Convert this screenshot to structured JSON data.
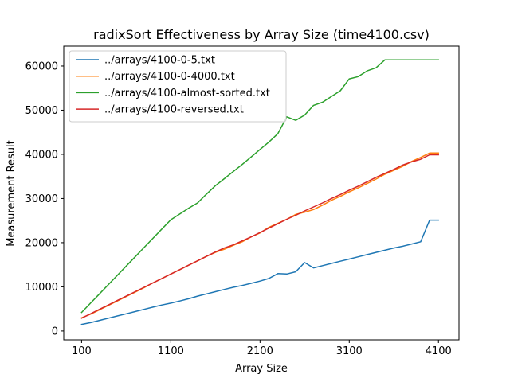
{
  "chart_data": {
    "type": "line",
    "title": "radixSort Effectiveness by Array Size (time4100.csv)",
    "xlabel": "Array Size",
    "ylabel": "Measurement Result",
    "xlim": [
      -100,
      4330
    ],
    "ylim": [
      -2000,
      64500
    ],
    "xticks": [
      100,
      1100,
      2100,
      3100,
      4100
    ],
    "yticks": [
      0,
      10000,
      20000,
      30000,
      40000,
      50000,
      60000
    ],
    "legend_position": "upper left",
    "series": [
      {
        "name": "../arrays/4100-0-5.txt",
        "color": "#1f77b4",
        "x": [
          100,
          200,
          300,
          400,
          500,
          600,
          700,
          800,
          900,
          1000,
          1100,
          1200,
          1300,
          1400,
          1500,
          1600,
          1700,
          1800,
          1900,
          2000,
          2100,
          2200,
          2300,
          2400,
          2500,
          2600,
          2700,
          2800,
          2900,
          3000,
          3100,
          3200,
          3300,
          3400,
          3500,
          3600,
          3700,
          3800,
          3900,
          4000,
          4100
        ],
        "y": [
          1500,
          1900,
          2400,
          2900,
          3400,
          3900,
          4400,
          4900,
          5400,
          5900,
          6300,
          6800,
          7300,
          7900,
          8400,
          8900,
          9400,
          9900,
          10300,
          10800,
          11300,
          11900,
          13000,
          12900,
          13400,
          15500,
          14300,
          14800,
          15300,
          15800,
          16300,
          16800,
          17300,
          17800,
          18300,
          18800,
          19200,
          19700,
          20200,
          25100,
          25100
        ]
      },
      {
        "name": "../arrays/4100-0-4000.txt",
        "color": "#ff7f0e",
        "x": [
          100,
          200,
          300,
          400,
          500,
          600,
          700,
          800,
          900,
          1000,
          1100,
          1200,
          1300,
          1400,
          1500,
          1600,
          1700,
          1800,
          1900,
          2000,
          2100,
          2200,
          2300,
          2400,
          2500,
          2600,
          2700,
          2800,
          2900,
          3000,
          3100,
          3200,
          3300,
          3400,
          3500,
          3600,
          3700,
          3800,
          3900,
          4000,
          4100
        ],
        "y": [
          3000,
          3800,
          4800,
          5800,
          6800,
          7800,
          8800,
          9800,
          10900,
          11900,
          12900,
          13900,
          14900,
          15900,
          16900,
          17800,
          18500,
          19400,
          20200,
          21300,
          22200,
          23500,
          24400,
          25300,
          26400,
          26900,
          27500,
          28500,
          29600,
          30500,
          31500,
          32400,
          33400,
          34400,
          35500,
          36400,
          37300,
          38400,
          39300,
          40300,
          40300
        ]
      },
      {
        "name": "../arrays/4100-almost-sorted.txt",
        "color": "#2ca02c",
        "x": [
          100,
          200,
          300,
          400,
          500,
          600,
          700,
          800,
          900,
          1000,
          1100,
          1200,
          1300,
          1400,
          1500,
          1600,
          1700,
          1800,
          1900,
          2000,
          2100,
          2200,
          2300,
          2400,
          2500,
          2600,
          2700,
          2800,
          2900,
          3000,
          3100,
          3200,
          3300,
          3400,
          3500,
          3600,
          3700,
          3800,
          3900,
          4000,
          4100
        ],
        "y": [
          4200,
          6300,
          8400,
          10500,
          12600,
          14700,
          16800,
          18900,
          21000,
          23100,
          25200,
          26500,
          27800,
          29000,
          31000,
          32900,
          34500,
          36100,
          37700,
          39400,
          41100,
          42800,
          44700,
          48500,
          47700,
          48900,
          51100,
          51800,
          53100,
          54400,
          57100,
          57600,
          58900,
          59600,
          61400,
          61400,
          61400,
          61400,
          61400,
          61400,
          61400
        ]
      },
      {
        "name": "../arrays/4100-reversed.txt",
        "color": "#d62728",
        "x": [
          100,
          200,
          300,
          400,
          500,
          600,
          700,
          800,
          900,
          1000,
          1100,
          1200,
          1300,
          1400,
          1500,
          1600,
          1700,
          1800,
          1900,
          2000,
          2100,
          2200,
          2300,
          2400,
          2500,
          2600,
          2700,
          2800,
          2900,
          3000,
          3100,
          3200,
          3300,
          3400,
          3500,
          3600,
          3700,
          3800,
          3900,
          4000,
          4100
        ],
        "y": [
          2900,
          3900,
          4900,
          5900,
          6900,
          7900,
          8900,
          9900,
          10900,
          11900,
          12900,
          13900,
          14900,
          15900,
          16900,
          17900,
          18800,
          19500,
          20400,
          21300,
          22300,
          23300,
          24300,
          25300,
          26200,
          27200,
          28100,
          29000,
          30000,
          30900,
          31900,
          32800,
          33800,
          34800,
          35700,
          36600,
          37600,
          38300,
          38900,
          39900,
          39900
        ]
      }
    ]
  }
}
